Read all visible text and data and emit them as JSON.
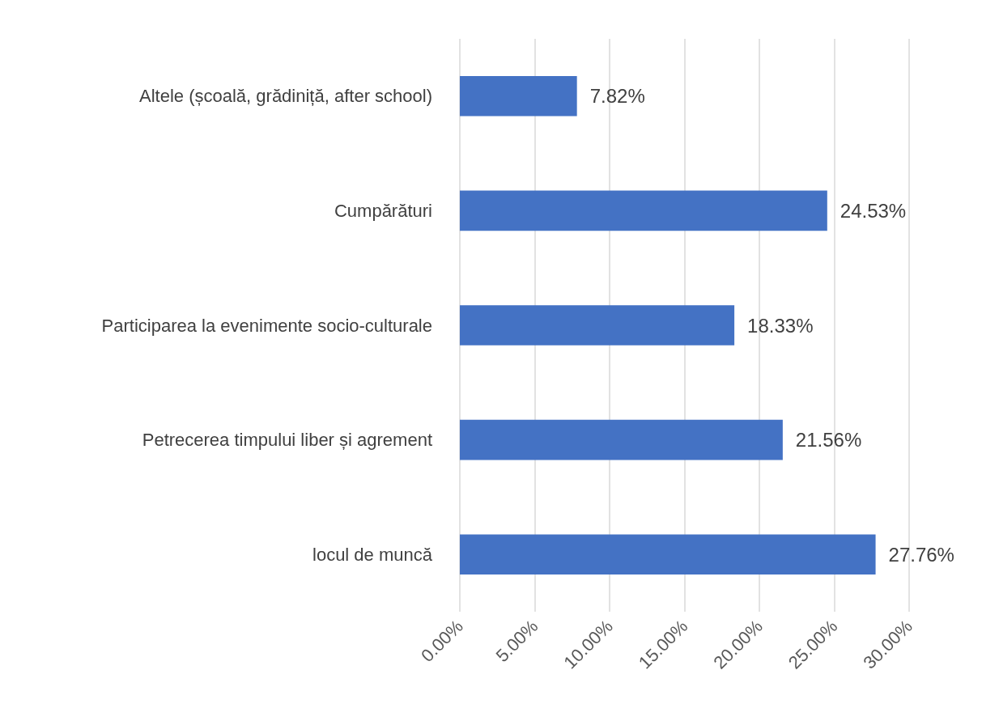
{
  "chart_data": {
    "type": "bar",
    "orientation": "horizontal",
    "categories": [
      "Altele (școală, grădiniță, after school)",
      "Cumpărături",
      "Participarea la evenimente socio-culturale",
      "Petrecerea timpului liber și agrement",
      "locul de muncă"
    ],
    "values": [
      7.82,
      24.53,
      18.33,
      21.56,
      27.76
    ],
    "value_labels": [
      "7.82%",
      "24.53%",
      "18.33%",
      "21.56%",
      "27.76%"
    ],
    "color": "#4472c4",
    "xlim": [
      0,
      30
    ],
    "xticks": [
      {
        "value": 0,
        "label": "0.00%"
      },
      {
        "value": 5,
        "label": "5.00%"
      },
      {
        "value": 10,
        "label": "10.00%"
      },
      {
        "value": 15,
        "label": "15.00%"
      },
      {
        "value": 20,
        "label": "20.00%"
      },
      {
        "value": 25,
        "label": "25.00%"
      },
      {
        "value": 30,
        "label": "30.00%"
      }
    ],
    "grid": "x"
  }
}
